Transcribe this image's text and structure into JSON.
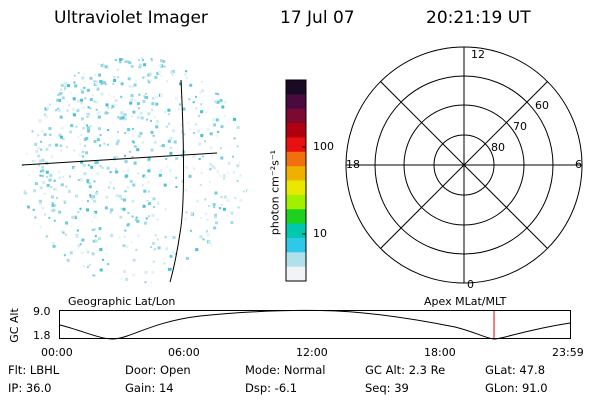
{
  "header": {
    "title": "Ultraviolet Imager",
    "date": "17 Jul 07",
    "time": "20:21:19 UT"
  },
  "colorbar": {
    "unit_label": "photon cm⁻²s⁻¹",
    "ticks": [
      "100",
      "10"
    ],
    "colors": [
      "#1b0a26",
      "#4a0a40",
      "#7a0a30",
      "#b00010",
      "#e81010",
      "#f07010",
      "#f0b000",
      "#e8e800",
      "#a0f000",
      "#20d020",
      "#00c8b0",
      "#30c8e8",
      "#b0e0ec",
      "#f0f4f6"
    ]
  },
  "polar_plot": {
    "mlt_labels": {
      "top": "12",
      "left": "18",
      "right": "6",
      "bottom": "0"
    },
    "lat_labels": [
      "60",
      "70",
      "80"
    ]
  },
  "timeline": {
    "left_label": "Geographic Lat/Lon",
    "right_label": "Apex MLat/MLT",
    "y_axis_label": "GC Alt",
    "y_ticks": [
      "9.0",
      "1.8"
    ],
    "x_ticks": [
      "00:00",
      "06:00",
      "12:00",
      "18:00",
      "23:59"
    ],
    "marker_color": "#e00000"
  },
  "info": {
    "filter": "Flt: LBHL",
    "door": "Door: Open",
    "mode": "Mode: Normal",
    "gc_alt": "GC Alt: 2.3 Re",
    "glat": "GLat:  47.8",
    "ip": "IP: 36.0",
    "gain": "Gain: 14",
    "dsp": "Dsp:   -6.1",
    "seq": "Seq: 39",
    "glon": "GLon:  91.0"
  }
}
